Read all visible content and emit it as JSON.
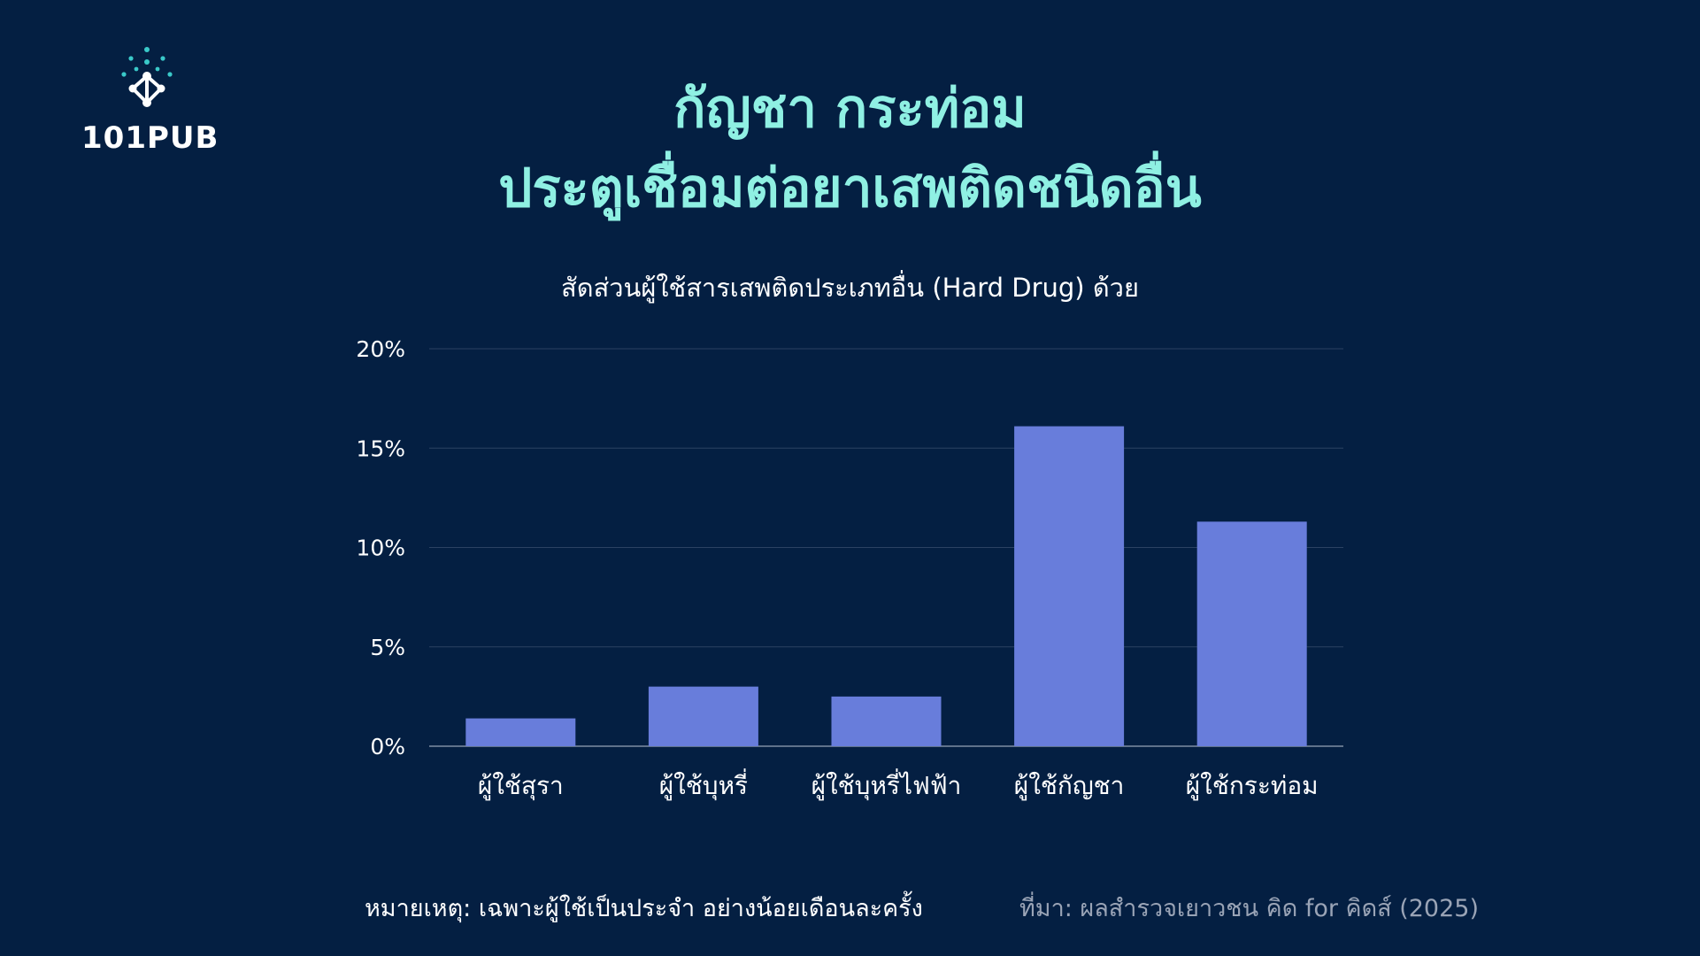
{
  "logo": {
    "text": "101PUB"
  },
  "title": {
    "line1": "กัญชา กระท่อม",
    "line2": "ประตูเชื่อมต่อยาเสพติดชนิดอื่น"
  },
  "note": "หมายเหตุ: เฉพาะผู้ใช้เป็นประจำ อย่างน้อยเดือนละครั้ง",
  "source": "ที่มา: ผลสำรวจเยาวชน คิด for คิดส์ (2025)",
  "colors": {
    "background": "#041f42",
    "title": "#8ff0e3",
    "bar": "#687ddb",
    "grid": "#2b4263"
  },
  "chart_data": {
    "type": "bar",
    "title": "สัดส่วนผู้ใช้สารเสพติดประเภทอื่น (Hard Drug) ด้วย",
    "categories": [
      "ผู้ใช้สุรา",
      "ผู้ใช้บุหรี่",
      "ผู้ใช้บุหรี่ไฟฟ้า",
      "ผู้ใช้กัญชา",
      "ผู้ใช้กระท่อม"
    ],
    "values": [
      1.4,
      3.0,
      2.5,
      16.1,
      11.3
    ],
    "ylim": [
      0,
      20
    ],
    "yticks": [
      "0%",
      "5%",
      "10%",
      "15%",
      "20%"
    ],
    "ytick_values": [
      0,
      5,
      10,
      15,
      20
    ],
    "grid": true,
    "legend": "none"
  }
}
